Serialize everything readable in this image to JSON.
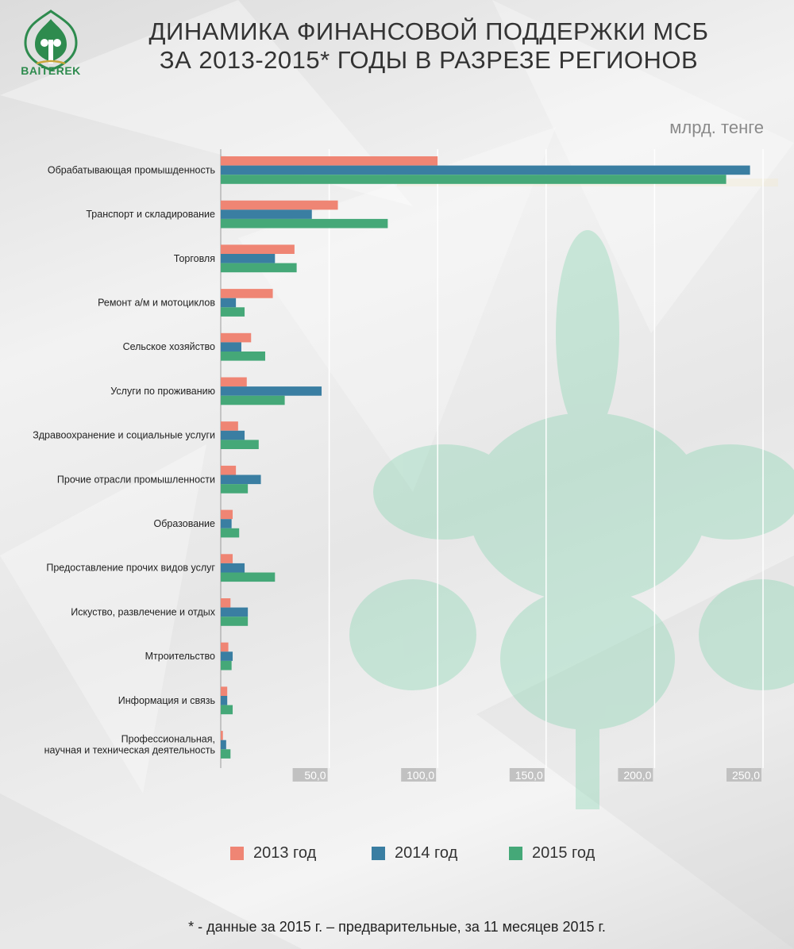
{
  "header": {
    "logo_text": "BAITEREK",
    "title_line1": "ДИНАМИКА ФИНАНСОВОЙ ПОДДЕРЖКИ МСБ",
    "title_line2": "ЗА 2013-2015* ГОДЫ В РАЗРЕЗЕ РЕГИОНОВ"
  },
  "unit_label": "млрд. тенге",
  "footnote": "* - данные за 2015 г. – предварительные, за 11 месяцев 2015 г.",
  "colors": {
    "2013": "#ef8574",
    "2014": "#3a7ea2",
    "2015": "#45a878",
    "logo": "#2e8b4e"
  },
  "chart_data": {
    "type": "bar",
    "orientation": "horizontal",
    "title": "ДИНАМИКА ФИНАНСОВОЙ ПОДДЕРЖКИ МСБ ЗА 2013-2015* ГОДЫ В РАЗРЕЗЕ РЕГИОНОВ",
    "xlabel": "млрд. тенге",
    "xlim": [
      0,
      250
    ],
    "xticks": [
      50,
      100,
      150,
      200,
      250
    ],
    "xtick_labels": [
      "50,0",
      "100,0",
      "150,0",
      "200,0",
      "250,0"
    ],
    "grid": true,
    "legend_position": "bottom",
    "categories": [
      [
        "Обрабатывающая промышденность"
      ],
      [
        "Транспорт и складирование"
      ],
      [
        "Торговля"
      ],
      [
        "Ремонт а/м и мотоциклов"
      ],
      [
        "Сельское хозяйство"
      ],
      [
        "Услуги по проживанию"
      ],
      [
        "Здравоохранение и социальные услуги"
      ],
      [
        "Прочие отрасли промышленности"
      ],
      [
        "Образование"
      ],
      [
        "Предоставление прочих видов услуг"
      ],
      [
        "Искуство, развлечение и отдых"
      ],
      [
        "Мтроительство"
      ],
      [
        "Информация и связь"
      ],
      [
        "Профессиональная,",
        "научная и техническая деятельность"
      ]
    ],
    "series": [
      {
        "name": "2013 год",
        "values": [
          100,
          54,
          34,
          24,
          14,
          12,
          8,
          7,
          5.5,
          5.5,
          4.5,
          3.5,
          3,
          1
        ]
      },
      {
        "name": "2014 год",
        "values": [
          244,
          42,
          25,
          7,
          9.5,
          46.5,
          11,
          18.5,
          5,
          11,
          12.5,
          5.5,
          3,
          2.5
        ]
      },
      {
        "name": "2015 год",
        "values": [
          233,
          77,
          35,
          11,
          20.5,
          29.5,
          17.5,
          12.5,
          8.5,
          25,
          12.5,
          5,
          5.5,
          4.5
        ]
      }
    ]
  }
}
